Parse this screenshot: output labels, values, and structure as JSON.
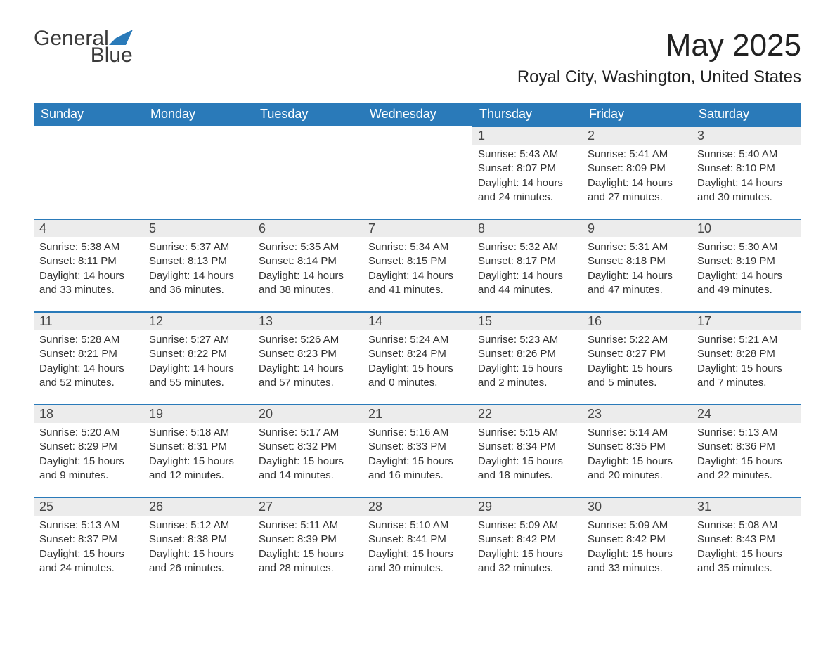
{
  "logo": {
    "word1": "General",
    "word2": "Blue",
    "textColor": "#3a3a3a",
    "accentColor": "#2a7ab9"
  },
  "title": "May 2025",
  "location": "Royal City, Washington, United States",
  "colors": {
    "headerBg": "#2a7ab9",
    "headerText": "#ffffff",
    "dayNumBg": "#ececec",
    "dayBorder": "#2a7ab9",
    "bodyText": "#333333",
    "pageBg": "#ffffff"
  },
  "daysOfWeek": [
    "Sunday",
    "Monday",
    "Tuesday",
    "Wednesday",
    "Thursday",
    "Friday",
    "Saturday"
  ],
  "weeks": [
    [
      null,
      null,
      null,
      null,
      {
        "n": "1",
        "sunrise": "Sunrise: 5:43 AM",
        "sunset": "Sunset: 8:07 PM",
        "daylight": "Daylight: 14 hours and 24 minutes."
      },
      {
        "n": "2",
        "sunrise": "Sunrise: 5:41 AM",
        "sunset": "Sunset: 8:09 PM",
        "daylight": "Daylight: 14 hours and 27 minutes."
      },
      {
        "n": "3",
        "sunrise": "Sunrise: 5:40 AM",
        "sunset": "Sunset: 8:10 PM",
        "daylight": "Daylight: 14 hours and 30 minutes."
      }
    ],
    [
      {
        "n": "4",
        "sunrise": "Sunrise: 5:38 AM",
        "sunset": "Sunset: 8:11 PM",
        "daylight": "Daylight: 14 hours and 33 minutes."
      },
      {
        "n": "5",
        "sunrise": "Sunrise: 5:37 AM",
        "sunset": "Sunset: 8:13 PM",
        "daylight": "Daylight: 14 hours and 36 minutes."
      },
      {
        "n": "6",
        "sunrise": "Sunrise: 5:35 AM",
        "sunset": "Sunset: 8:14 PM",
        "daylight": "Daylight: 14 hours and 38 minutes."
      },
      {
        "n": "7",
        "sunrise": "Sunrise: 5:34 AM",
        "sunset": "Sunset: 8:15 PM",
        "daylight": "Daylight: 14 hours and 41 minutes."
      },
      {
        "n": "8",
        "sunrise": "Sunrise: 5:32 AM",
        "sunset": "Sunset: 8:17 PM",
        "daylight": "Daylight: 14 hours and 44 minutes."
      },
      {
        "n": "9",
        "sunrise": "Sunrise: 5:31 AM",
        "sunset": "Sunset: 8:18 PM",
        "daylight": "Daylight: 14 hours and 47 minutes."
      },
      {
        "n": "10",
        "sunrise": "Sunrise: 5:30 AM",
        "sunset": "Sunset: 8:19 PM",
        "daylight": "Daylight: 14 hours and 49 minutes."
      }
    ],
    [
      {
        "n": "11",
        "sunrise": "Sunrise: 5:28 AM",
        "sunset": "Sunset: 8:21 PM",
        "daylight": "Daylight: 14 hours and 52 minutes."
      },
      {
        "n": "12",
        "sunrise": "Sunrise: 5:27 AM",
        "sunset": "Sunset: 8:22 PM",
        "daylight": "Daylight: 14 hours and 55 minutes."
      },
      {
        "n": "13",
        "sunrise": "Sunrise: 5:26 AM",
        "sunset": "Sunset: 8:23 PM",
        "daylight": "Daylight: 14 hours and 57 minutes."
      },
      {
        "n": "14",
        "sunrise": "Sunrise: 5:24 AM",
        "sunset": "Sunset: 8:24 PM",
        "daylight": "Daylight: 15 hours and 0 minutes."
      },
      {
        "n": "15",
        "sunrise": "Sunrise: 5:23 AM",
        "sunset": "Sunset: 8:26 PM",
        "daylight": "Daylight: 15 hours and 2 minutes."
      },
      {
        "n": "16",
        "sunrise": "Sunrise: 5:22 AM",
        "sunset": "Sunset: 8:27 PM",
        "daylight": "Daylight: 15 hours and 5 minutes."
      },
      {
        "n": "17",
        "sunrise": "Sunrise: 5:21 AM",
        "sunset": "Sunset: 8:28 PM",
        "daylight": "Daylight: 15 hours and 7 minutes."
      }
    ],
    [
      {
        "n": "18",
        "sunrise": "Sunrise: 5:20 AM",
        "sunset": "Sunset: 8:29 PM",
        "daylight": "Daylight: 15 hours and 9 minutes."
      },
      {
        "n": "19",
        "sunrise": "Sunrise: 5:18 AM",
        "sunset": "Sunset: 8:31 PM",
        "daylight": "Daylight: 15 hours and 12 minutes."
      },
      {
        "n": "20",
        "sunrise": "Sunrise: 5:17 AM",
        "sunset": "Sunset: 8:32 PM",
        "daylight": "Daylight: 15 hours and 14 minutes."
      },
      {
        "n": "21",
        "sunrise": "Sunrise: 5:16 AM",
        "sunset": "Sunset: 8:33 PM",
        "daylight": "Daylight: 15 hours and 16 minutes."
      },
      {
        "n": "22",
        "sunrise": "Sunrise: 5:15 AM",
        "sunset": "Sunset: 8:34 PM",
        "daylight": "Daylight: 15 hours and 18 minutes."
      },
      {
        "n": "23",
        "sunrise": "Sunrise: 5:14 AM",
        "sunset": "Sunset: 8:35 PM",
        "daylight": "Daylight: 15 hours and 20 minutes."
      },
      {
        "n": "24",
        "sunrise": "Sunrise: 5:13 AM",
        "sunset": "Sunset: 8:36 PM",
        "daylight": "Daylight: 15 hours and 22 minutes."
      }
    ],
    [
      {
        "n": "25",
        "sunrise": "Sunrise: 5:13 AM",
        "sunset": "Sunset: 8:37 PM",
        "daylight": "Daylight: 15 hours and 24 minutes."
      },
      {
        "n": "26",
        "sunrise": "Sunrise: 5:12 AM",
        "sunset": "Sunset: 8:38 PM",
        "daylight": "Daylight: 15 hours and 26 minutes."
      },
      {
        "n": "27",
        "sunrise": "Sunrise: 5:11 AM",
        "sunset": "Sunset: 8:39 PM",
        "daylight": "Daylight: 15 hours and 28 minutes."
      },
      {
        "n": "28",
        "sunrise": "Sunrise: 5:10 AM",
        "sunset": "Sunset: 8:41 PM",
        "daylight": "Daylight: 15 hours and 30 minutes."
      },
      {
        "n": "29",
        "sunrise": "Sunrise: 5:09 AM",
        "sunset": "Sunset: 8:42 PM",
        "daylight": "Daylight: 15 hours and 32 minutes."
      },
      {
        "n": "30",
        "sunrise": "Sunrise: 5:09 AM",
        "sunset": "Sunset: 8:42 PM",
        "daylight": "Daylight: 15 hours and 33 minutes."
      },
      {
        "n": "31",
        "sunrise": "Sunrise: 5:08 AM",
        "sunset": "Sunset: 8:43 PM",
        "daylight": "Daylight: 15 hours and 35 minutes."
      }
    ]
  ]
}
